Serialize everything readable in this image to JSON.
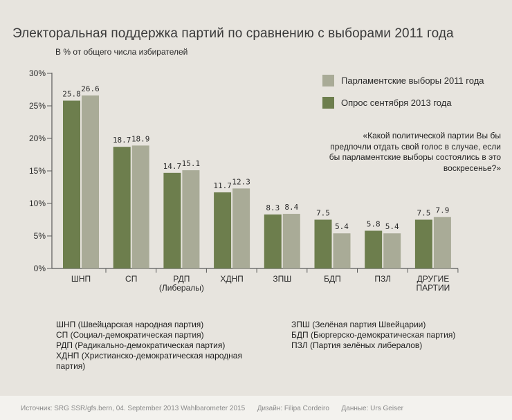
{
  "title": "Электоральная поддержка партий по сравнению с выборами 2011 года",
  "subtitle": "В % от общего числа избирателей",
  "colors": {
    "series_2011": "#a9ab97",
    "series_2013": "#6d7e4d",
    "axis": "#5a5a5a",
    "background": "#e7e4de",
    "footer_bg": "#f3f2ee"
  },
  "legend": {
    "items": [
      {
        "label": "Парламентские выборы 2011 года",
        "color": "#a9ab97"
      },
      {
        "label": "Опрос сентября 2013 года",
        "color": "#6d7e4d"
      }
    ]
  },
  "quote": "«Какой политической партии Вы бы предпочли отдать свой голос в случае, если бы парламентские выборы состоялись в это воскресенье?»",
  "abbreviations_left": [
    "ШНП (Швейцарская народная партия)",
    "СП (Социал-демократическая партия)",
    "РДП (Радикально-демократическая партия)",
    "ХДНП (Христианско-демократическая народная партия)"
  ],
  "abbreviations_right": [
    "ЗПШ (Зелёная партия Швейцарии)",
    "БДП (Бюргерско-демократическая партия)",
    "ПЗЛ (Партия зелёных либералов)"
  ],
  "footer": {
    "source_label": "Источник:",
    "source_value": "SRG SSR/gfs.bern, 04. September 2013 Wahlbarometer 2015",
    "design_label": "Дизайн:",
    "design_value": "Filipa Cordeiro",
    "data_label": "Данные:",
    "data_value": "Urs Geiser"
  },
  "chart_data": {
    "type": "bar",
    "title": "Электоральная поддержка партий по сравнению с выборами 2011 года",
    "ylabel": "В % от общего числа избирателей",
    "xlabel": "",
    "ylim": [
      0,
      30
    ],
    "yticks": [
      0,
      5,
      10,
      15,
      20,
      25,
      30
    ],
    "ytick_labels": [
      "0%",
      "5%",
      "10%",
      "15%",
      "20%",
      "25%",
      "30%"
    ],
    "categories": [
      [
        "ШНП"
      ],
      [
        "СП"
      ],
      [
        "РДП",
        "(Либералы)"
      ],
      [
        "ХДНП"
      ],
      [
        "ЗПШ"
      ],
      [
        "БДП"
      ],
      [
        "ПЗЛ"
      ],
      [
        "ДРУГИЕ",
        "ПАРТИИ"
      ]
    ],
    "series": [
      {
        "name": "Опрос сентября 2013 года",
        "color": "#6d7e4d",
        "values": [
          25.8,
          18.7,
          14.7,
          11.7,
          8.3,
          7.5,
          5.8,
          7.5
        ],
        "labels": [
          "25.8",
          "18.7",
          "14.7",
          "11.7",
          "8.3",
          "7.5",
          "5.8",
          "7.5"
        ]
      },
      {
        "name": "Парламентские выборы 2011 года",
        "color": "#a9ab97",
        "values": [
          26.6,
          18.9,
          15.1,
          12.3,
          8.4,
          5.4,
          5.4,
          7.9
        ],
        "labels": [
          "26.6",
          "18.9",
          "15.1",
          "12.3",
          "8.4",
          "5.4",
          "5.4",
          "7.9"
        ]
      }
    ]
  }
}
